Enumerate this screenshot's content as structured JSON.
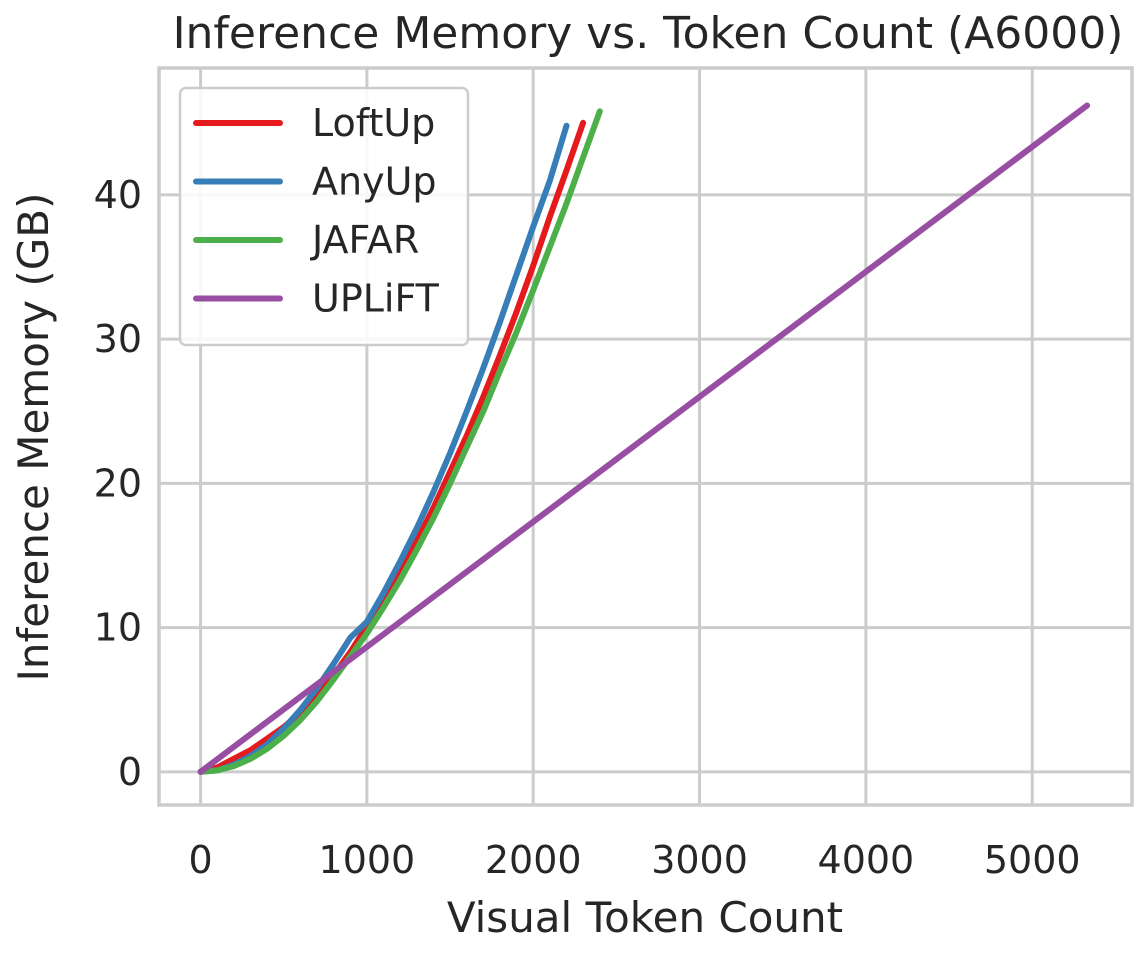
{
  "chart_data": {
    "type": "line",
    "title": "Inference Memory vs. Token Count (A6000)",
    "xlabel": "Visual Token Count",
    "ylabel": "Inference Memory (GB)",
    "xlim": [
      -250,
      5600
    ],
    "ylim": [
      -2.3,
      48.8
    ],
    "xticks": [
      0,
      1000,
      2000,
      3000,
      4000,
      5000
    ],
    "yticks": [
      0,
      10,
      20,
      30,
      40
    ],
    "grid": true,
    "legend_position": "top-left",
    "series": [
      {
        "name": "LoftUp",
        "color": "#e41a1c",
        "points": [
          [
            0,
            0
          ],
          [
            100,
            0.3
          ],
          [
            200,
            0.9
          ],
          [
            300,
            1.5
          ],
          [
            400,
            2.3
          ],
          [
            500,
            3.1
          ],
          [
            600,
            4.1
          ],
          [
            700,
            5.3
          ],
          [
            800,
            6.7
          ],
          [
            900,
            8.3
          ],
          [
            1000,
            10.1
          ],
          [
            1100,
            11.9
          ],
          [
            1200,
            13.9
          ],
          [
            1300,
            16.0
          ],
          [
            1400,
            18.3
          ],
          [
            1500,
            20.8
          ],
          [
            1600,
            23.3
          ],
          [
            1700,
            26.0
          ],
          [
            1800,
            28.9
          ],
          [
            1900,
            31.9
          ],
          [
            2000,
            35.1
          ],
          [
            2100,
            38.5
          ],
          [
            2200,
            41.7
          ],
          [
            2300,
            45.0
          ]
        ]
      },
      {
        "name": "AnyUp",
        "color": "#377eb8",
        "points": [
          [
            0,
            0
          ],
          [
            100,
            0.1
          ],
          [
            200,
            0.5
          ],
          [
            300,
            1.1
          ],
          [
            400,
            1.9
          ],
          [
            500,
            3.0
          ],
          [
            600,
            4.3
          ],
          [
            700,
            5.8
          ],
          [
            800,
            7.5
          ],
          [
            900,
            9.3
          ],
          [
            1000,
            10.4
          ],
          [
            1100,
            12.4
          ],
          [
            1200,
            14.6
          ],
          [
            1300,
            16.9
          ],
          [
            1400,
            19.4
          ],
          [
            1500,
            22.1
          ],
          [
            1600,
            25.0
          ],
          [
            1700,
            28.0
          ],
          [
            1800,
            31.2
          ],
          [
            1900,
            34.5
          ],
          [
            2000,
            37.8
          ],
          [
            2100,
            41.0
          ],
          [
            2200,
            44.8
          ]
        ]
      },
      {
        "name": "JAFAR",
        "color": "#4daf4a",
        "points": [
          [
            0,
            0
          ],
          [
            100,
            0.1
          ],
          [
            200,
            0.4
          ],
          [
            300,
            0.9
          ],
          [
            400,
            1.6
          ],
          [
            500,
            2.5
          ],
          [
            600,
            3.6
          ],
          [
            700,
            4.9
          ],
          [
            800,
            6.4
          ],
          [
            900,
            8.0
          ],
          [
            1000,
            9.6
          ],
          [
            1100,
            11.4
          ],
          [
            1200,
            13.3
          ],
          [
            1300,
            15.4
          ],
          [
            1400,
            17.6
          ],
          [
            1500,
            20.0
          ],
          [
            1600,
            22.5
          ],
          [
            1700,
            25.0
          ],
          [
            1800,
            27.8
          ],
          [
            1900,
            30.5
          ],
          [
            2000,
            33.4
          ],
          [
            2100,
            36.4
          ],
          [
            2200,
            39.4
          ],
          [
            2300,
            42.6
          ],
          [
            2400,
            45.8
          ]
        ]
      },
      {
        "name": "UPLiFT",
        "color": "#984ea3",
        "points": [
          [
            0,
            0
          ],
          [
            5330,
            46.2
          ]
        ]
      }
    ]
  }
}
